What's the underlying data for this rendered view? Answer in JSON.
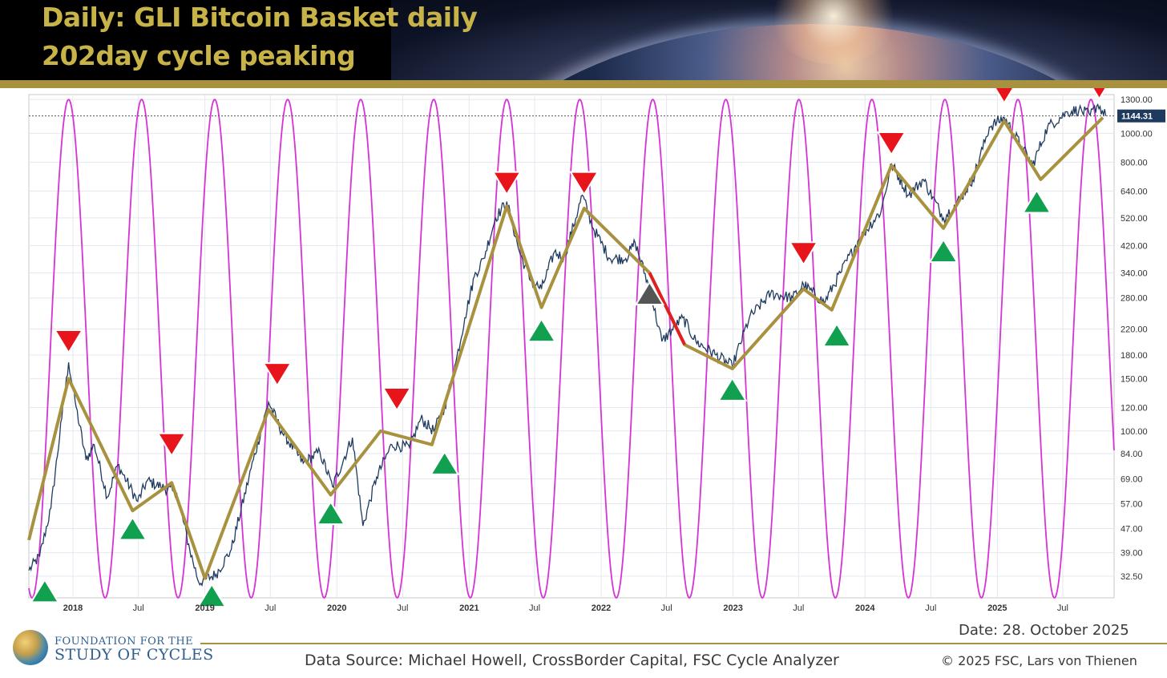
{
  "header": {
    "title_line1": "Daily: GLI Bitcoin Basket daily",
    "title_line2": "202day cycle peaking"
  },
  "footer": {
    "date": "Date: 28. October 2025",
    "source": "Data Source: Michael Howell, CrossBorder Capital, FSC Cycle Analyzer",
    "copyright": "© 2025 FSC, Lars von Thienen",
    "logo_line1": "FOUNDATION FOR THE",
    "logo_line2": "STUDY OF CYCLES"
  },
  "colors": {
    "price": "#1f3a5f",
    "cycle": "#d633d6",
    "trend": "#a8923f",
    "trend_down_segment": "#e02020",
    "peak_marker": "#e8141c",
    "trough_marker": "#10a050",
    "neutral_marker": "#555555",
    "accent_gold": "#a8923f",
    "last_value_label_bg": "#1f3a5f"
  },
  "chart_data": {
    "type": "line",
    "scale": "log",
    "x_range": [
      "2017-09-01",
      "2025-11-20"
    ],
    "ylim": [
      27.5,
      1350
    ],
    "y_ticks": [
      "1300.00",
      "1000.00",
      "800.00",
      "640.00",
      "520.00",
      "420.00",
      "340.00",
      "280.00",
      "220.00",
      "180.00",
      "150.00",
      "120.00",
      "100.00",
      "84.00",
      "69.00",
      "57.00",
      "47.00",
      "39.00",
      "32.50"
    ],
    "x_ticks": [
      {
        "date": "2018-01-01",
        "label": "2018",
        "major": true
      },
      {
        "date": "2018-07-01",
        "label": "Jul",
        "major": false
      },
      {
        "date": "2019-01-01",
        "label": "2019",
        "major": true
      },
      {
        "date": "2019-07-01",
        "label": "Jul",
        "major": false
      },
      {
        "date": "2020-01-01",
        "label": "2020",
        "major": true
      },
      {
        "date": "2020-07-01",
        "label": "Jul",
        "major": false
      },
      {
        "date": "2021-01-01",
        "label": "2021",
        "major": true
      },
      {
        "date": "2021-07-01",
        "label": "Jul",
        "major": false
      },
      {
        "date": "2022-01-01",
        "label": "2022",
        "major": true
      },
      {
        "date": "2022-07-01",
        "label": "Jul",
        "major": false
      },
      {
        "date": "2023-01-01",
        "label": "2023",
        "major": true
      },
      {
        "date": "2023-07-01",
        "label": "Jul",
        "major": false
      },
      {
        "date": "2024-01-01",
        "label": "2024",
        "major": true
      },
      {
        "date": "2024-07-01",
        "label": "Jul",
        "major": false
      },
      {
        "date": "2025-01-01",
        "label": "2025",
        "major": true
      },
      {
        "date": "2025-07-01",
        "label": "Jul",
        "major": false
      }
    ],
    "last_value": 1144.31,
    "last_value_label": "1144.31",
    "series": [
      {
        "name": "GLI Bitcoin Basket",
        "points": [
          [
            "2017-09-01",
            34
          ],
          [
            "2017-10-01",
            38
          ],
          [
            "2017-11-01",
            55
          ],
          [
            "2017-12-01",
            110
          ],
          [
            "2017-12-20",
            170
          ],
          [
            "2018-01-10",
            120
          ],
          [
            "2018-02-06",
            80
          ],
          [
            "2018-03-01",
            90
          ],
          [
            "2018-04-06",
            60
          ],
          [
            "2018-05-05",
            77
          ],
          [
            "2018-06-29",
            58
          ],
          [
            "2018-07-25",
            68
          ],
          [
            "2018-09-01",
            65
          ],
          [
            "2018-10-15",
            62
          ],
          [
            "2018-11-20",
            40
          ],
          [
            "2018-12-15",
            31
          ],
          [
            "2019-02-01",
            33
          ],
          [
            "2019-03-15",
            40
          ],
          [
            "2019-05-15",
            80
          ],
          [
            "2019-06-26",
            125
          ],
          [
            "2019-08-01",
            100
          ],
          [
            "2019-09-30",
            78
          ],
          [
            "2019-11-15",
            85
          ],
          [
            "2019-12-20",
            65
          ],
          [
            "2020-02-13",
            95
          ],
          [
            "2020-03-13",
            48
          ],
          [
            "2020-04-20",
            70
          ],
          [
            "2020-06-01",
            90
          ],
          [
            "2020-07-20",
            88
          ],
          [
            "2020-08-20",
            110
          ],
          [
            "2020-09-25",
            100
          ],
          [
            "2020-10-25",
            120
          ],
          [
            "2020-11-25",
            170
          ],
          [
            "2020-12-20",
            240
          ],
          [
            "2021-01-15",
            330
          ],
          [
            "2021-02-10",
            380
          ],
          [
            "2021-03-15",
            520
          ],
          [
            "2021-04-15",
            590
          ],
          [
            "2021-05-20",
            400
          ],
          [
            "2021-06-20",
            320
          ],
          [
            "2021-07-20",
            300
          ],
          [
            "2021-08-25",
            400
          ],
          [
            "2021-09-20",
            380
          ],
          [
            "2021-11-10",
            620
          ],
          [
            "2021-12-10",
            480
          ],
          [
            "2022-01-25",
            380
          ],
          [
            "2022-03-10",
            380
          ],
          [
            "2022-04-05",
            430
          ],
          [
            "2022-05-15",
            300
          ],
          [
            "2022-06-18",
            200
          ],
          [
            "2022-08-15",
            240
          ],
          [
            "2022-09-20",
            200
          ],
          [
            "2022-11-15",
            180
          ],
          [
            "2022-12-30",
            165
          ],
          [
            "2023-02-15",
            240
          ],
          [
            "2023-04-15",
            290
          ],
          [
            "2023-06-15",
            280
          ],
          [
            "2023-07-15",
            310
          ],
          [
            "2023-09-10",
            270
          ],
          [
            "2023-10-25",
            340
          ],
          [
            "2023-12-15",
            440
          ],
          [
            "2024-02-15",
            550
          ],
          [
            "2024-03-14",
            790
          ],
          [
            "2024-05-01",
            620
          ],
          [
            "2024-06-10",
            700
          ],
          [
            "2024-08-05",
            520
          ],
          [
            "2024-09-10",
            580
          ],
          [
            "2024-10-25",
            700
          ],
          [
            "2024-12-10",
            1050
          ],
          [
            "2025-01-20",
            1130
          ],
          [
            "2025-03-10",
            900
          ],
          [
            "2025-04-08",
            780
          ],
          [
            "2025-05-20",
            1050
          ],
          [
            "2025-07-14",
            1180
          ],
          [
            "2025-08-15",
            1200
          ],
          [
            "2025-09-15",
            1150
          ],
          [
            "2025-10-06",
            1250
          ],
          [
            "2025-10-28",
            1144.31
          ]
        ]
      },
      {
        "name": "202day cycle",
        "period_days": 202,
        "peak_date": "2021-04-15"
      },
      {
        "name": "Cycle path",
        "points": [
          [
            "2017-09-01",
            43
          ],
          [
            "2017-12-20",
            150
          ],
          [
            "2018-06-15",
            54
          ],
          [
            "2018-10-01",
            67
          ],
          [
            "2019-01-01",
            32
          ],
          [
            "2019-06-26",
            118
          ],
          [
            "2019-12-15",
            61
          ],
          [
            "2020-05-01",
            100
          ],
          [
            "2020-09-20",
            90
          ],
          [
            "2021-04-15",
            570
          ],
          [
            "2021-07-20",
            260
          ],
          [
            "2021-11-15",
            560
          ],
          [
            "2022-05-15",
            340
          ],
          [
            "2022-08-20",
            195
          ],
          [
            "2022-12-30",
            162
          ],
          [
            "2023-07-15",
            300
          ],
          [
            "2023-10-01",
            255
          ],
          [
            "2024-03-14",
            780
          ],
          [
            "2024-08-05",
            480
          ],
          [
            "2025-01-20",
            1100
          ],
          [
            "2025-05-01",
            700
          ],
          [
            "2025-10-20",
            1130
          ]
        ],
        "down_segment": [
          [
            "2022-05-15",
            340
          ],
          [
            "2022-08-20",
            195
          ]
        ]
      }
    ],
    "markers": [
      {
        "type": "trough",
        "date": "2017-10-15",
        "value": 29
      },
      {
        "type": "peak",
        "date": "2017-12-20",
        "value": 200
      },
      {
        "type": "trough",
        "date": "2018-06-15",
        "value": 47
      },
      {
        "type": "peak",
        "date": "2018-10-01",
        "value": 90
      },
      {
        "type": "trough",
        "date": "2019-01-20",
        "value": 28
      },
      {
        "type": "peak",
        "date": "2019-07-20",
        "value": 155
      },
      {
        "type": "trough",
        "date": "2019-12-15",
        "value": 53
      },
      {
        "type": "peak",
        "date": "2020-06-15",
        "value": 128
      },
      {
        "type": "trough",
        "date": "2020-10-25",
        "value": 78
      },
      {
        "type": "peak",
        "date": "2021-04-15",
        "value": 680
      },
      {
        "type": "trough",
        "date": "2021-07-20",
        "value": 218
      },
      {
        "type": "peak",
        "date": "2021-11-15",
        "value": 680
      },
      {
        "type": "neutral",
        "date": "2022-05-15",
        "value": 290
      },
      {
        "type": "trough",
        "date": "2022-12-30",
        "value": 138
      },
      {
        "type": "peak",
        "date": "2023-07-15",
        "value": 395
      },
      {
        "type": "trough",
        "date": "2023-10-15",
        "value": 210
      },
      {
        "type": "peak",
        "date": "2024-03-14",
        "value": 925
      },
      {
        "type": "trough",
        "date": "2024-08-05",
        "value": 403
      },
      {
        "type": "peak",
        "date": "2025-01-20",
        "value": 1380
      },
      {
        "type": "trough",
        "date": "2025-04-20",
        "value": 590
      },
      {
        "type": "peak",
        "date": "2025-10-10",
        "value": 1425
      }
    ]
  }
}
